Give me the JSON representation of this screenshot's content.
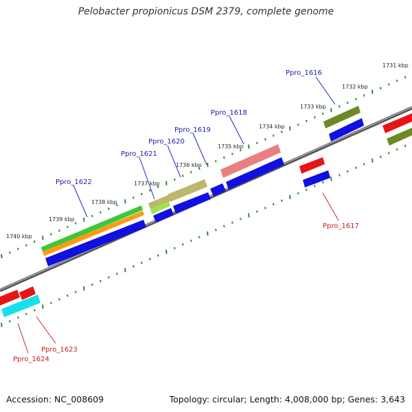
{
  "title": "Pelobacter propionicus DSM 2379, complete genome",
  "accession_text": "Accession: NC_008609",
  "summary_text": "Topology: circular; Length: 4,008,000 bp; Genes: 3,643",
  "colors": {
    "forward_gene_label": "#1a1aa8",
    "reverse_gene_label": "#c81e1e",
    "cds": "#1010e0",
    "backbone": "#808080",
    "ticks": "#2f8a2f"
  },
  "kbp_ticks": [
    "1731 kbp",
    "1732 kbp",
    "1733 kbp",
    "1734 kbp",
    "1735 kbp",
    "1736 kbp",
    "1737 kbp",
    "1738 kbp",
    "1739 kbp",
    "1740 kbp"
  ],
  "gene_labels": {
    "forward": [
      "Ppro_1616",
      "Ppro_1618",
      "Ppro_1619",
      "Ppro_1620",
      "Ppro_1621",
      "Ppro_1622"
    ],
    "reverse": [
      "Ppro_1617",
      "Ppro_1623",
      "Ppro_1624"
    ]
  },
  "feature_colors": {
    "olive": "#6b8a24",
    "salmon": "#e88080",
    "khaki": "#bdb76b",
    "lime": "#9ae64a",
    "green": "#3cc83c",
    "orange": "#ff9a14",
    "red": "#e81414",
    "cyan": "#18e0ea"
  }
}
